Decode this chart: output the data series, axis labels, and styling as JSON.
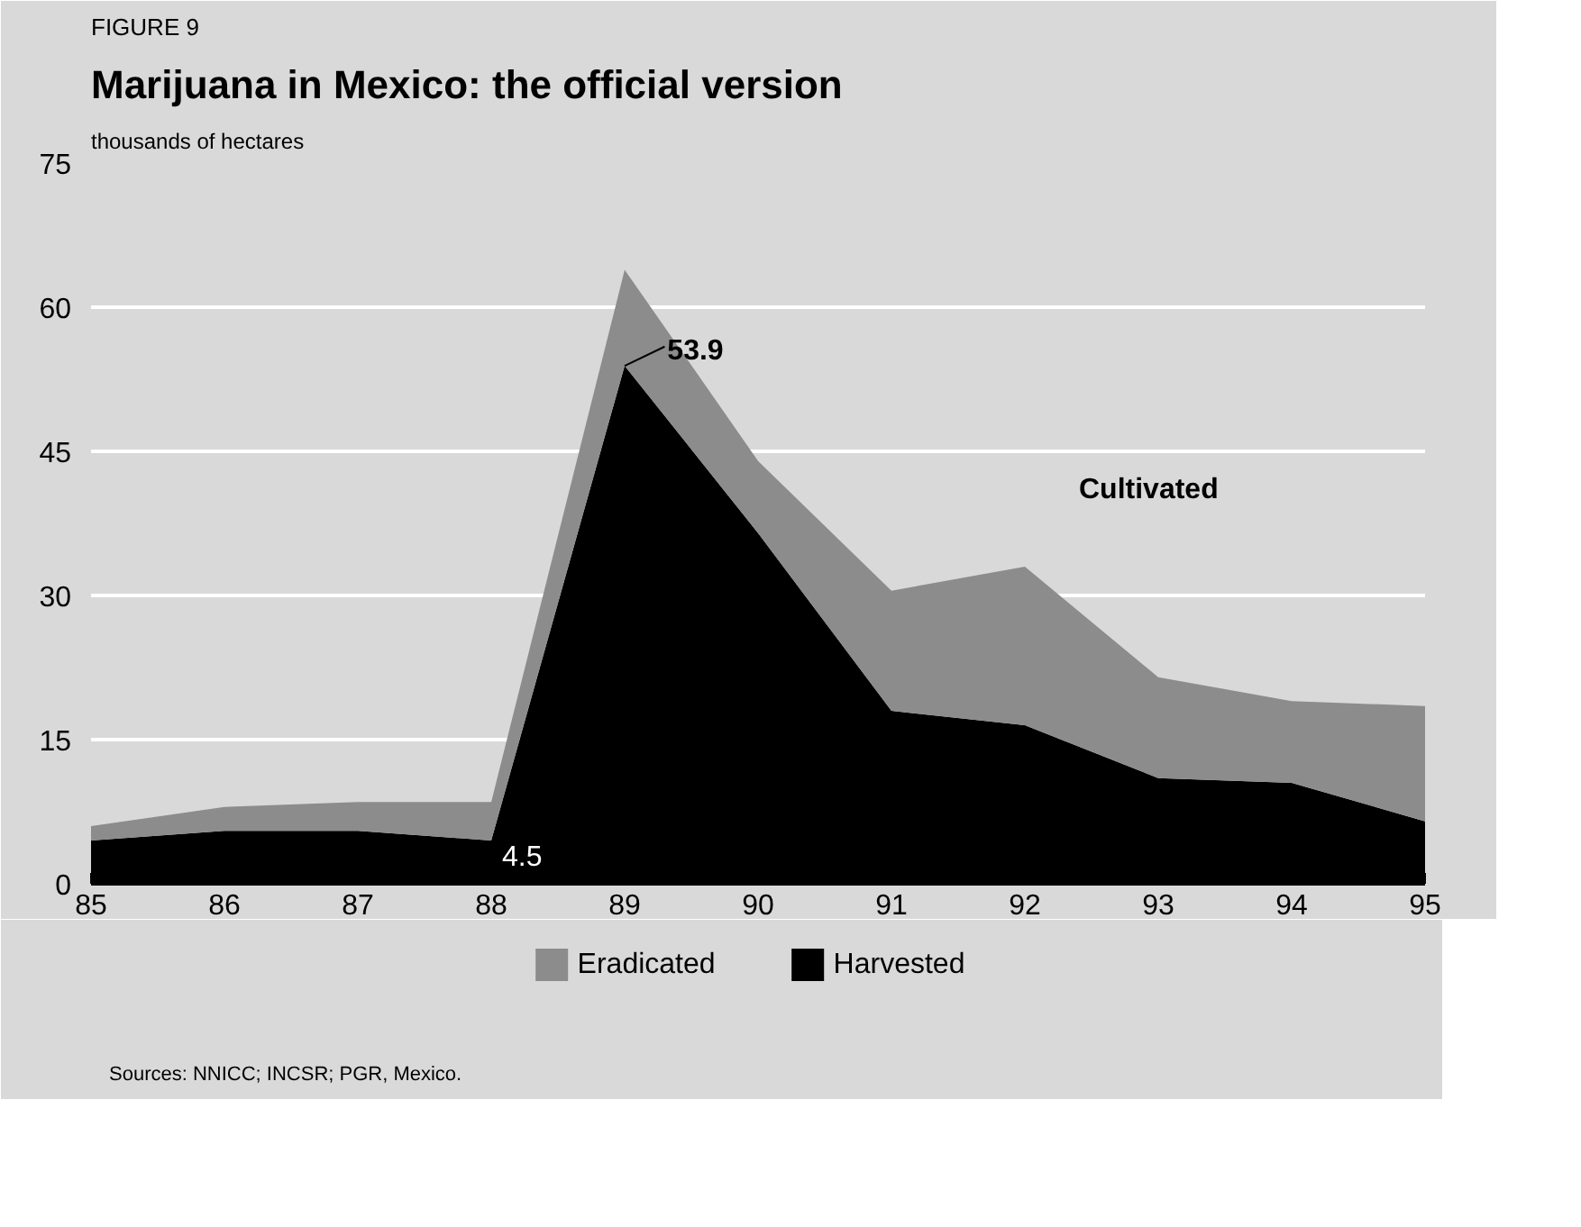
{
  "chart_data": {
    "type": "area",
    "stacked": true,
    "title": "FIGURE 9",
    "subtitle": "Marijuana in Mexico: the official version",
    "ylabel": "thousands of hectares",
    "x": [
      85,
      86,
      87,
      88,
      89,
      90,
      91,
      92,
      93,
      94,
      95
    ],
    "series": [
      {
        "name": "Harvested",
        "color": "#000000",
        "values": [
          4.5,
          5.5,
          5.5,
          4.5,
          53.9,
          36.5,
          18,
          16.5,
          11,
          10.5,
          6.5
        ]
      },
      {
        "name": "Eradicated",
        "color": "#8c8c8c",
        "values": [
          1.5,
          2.5,
          3,
          4,
          10,
          7.5,
          12.5,
          16.5,
          10.5,
          8.5,
          12
        ]
      }
    ],
    "xlim": [
      85,
      95
    ],
    "xticks": [
      85,
      86,
      87,
      88,
      89,
      90,
      91,
      92,
      93,
      94,
      95
    ],
    "ylim": [
      0,
      75
    ],
    "yticks": [
      0,
      15,
      30,
      45,
      60,
      75
    ],
    "grid": "y",
    "legend": "bottom",
    "annotations": [
      {
        "text": "4.5",
        "x": 88,
        "y": 4.5
      },
      {
        "text": "53.9",
        "x": 89,
        "y": 53.9
      },
      "Cultivated",
      "Sources: NNICC; INCSR; PGR, Mexico."
    ]
  }
}
